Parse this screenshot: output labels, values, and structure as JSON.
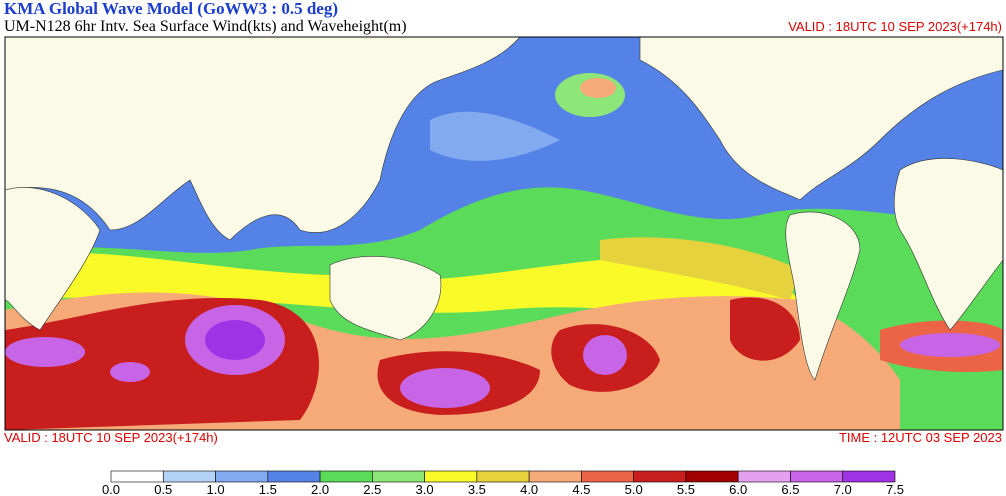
{
  "header": {
    "title": "KMA  Global Wave Model (GoWW3 : 0.5 deg)",
    "subtitle": "UM-N128  6hr Intv. Sea Surface Wind(kts) and Waveheight(m)",
    "valid_top": "VALID : 18UTC 10 SEP 2023(+174h)"
  },
  "footer": {
    "valid": "VALID : 18UTC 10 SEP 2023(+174h)",
    "time": "TIME : 12UTC 03 SEP 2023"
  },
  "colorbar": {
    "colors": [
      "#ffffff",
      "#b4d2f5",
      "#82aaf0",
      "#5582e6",
      "#5adc5a",
      "#8ce678",
      "#fafa28",
      "#e6d23c",
      "#f5aa78",
      "#eb6446",
      "#c81e1e",
      "#a00000",
      "#e6a0f0",
      "#c864e6",
      "#a032e6"
    ],
    "ticks": [
      {
        "value": 0,
        "label": "0.0"
      },
      {
        "value": 0.5,
        "label": "0.5"
      },
      {
        "value": 1,
        "label": "1.0"
      },
      {
        "value": 1.5,
        "label": "1.5"
      },
      {
        "value": 2,
        "label": "2.0"
      },
      {
        "value": 2.5,
        "label": "2.5"
      },
      {
        "value": 3,
        "label": "3.0"
      },
      {
        "value": 3.5,
        "label": "3.5"
      },
      {
        "value": 4,
        "label": "4.0"
      },
      {
        "value": 4.5,
        "label": "4.5"
      },
      {
        "value": 5,
        "label": "5.0"
      },
      {
        "value": 5.5,
        "label": "5.5"
      },
      {
        "value": 6,
        "label": "6.0"
      },
      {
        "value": 6.5,
        "label": "6.5"
      },
      {
        "value": 7,
        "label": "7.0"
      },
      {
        "value": 7.5,
        "label": "7.5"
      }
    ]
  }
}
